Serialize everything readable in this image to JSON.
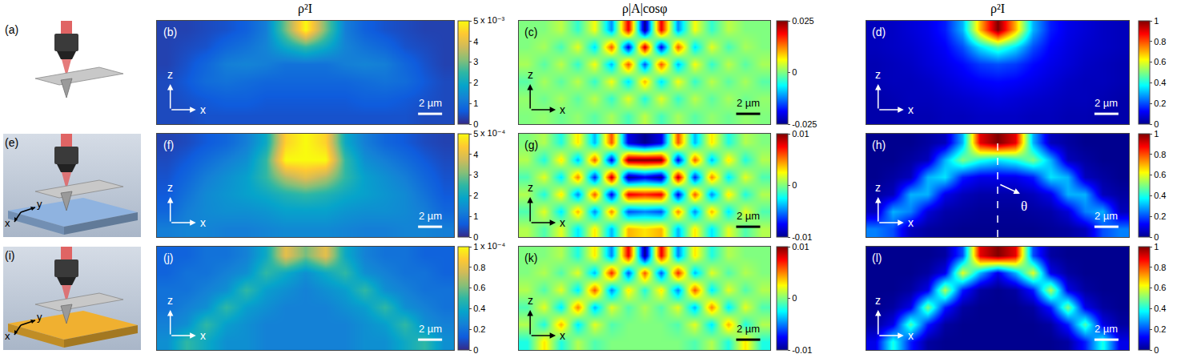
{
  "column_titles": [
    "ρ²I",
    "ρ|A|cosφ",
    "ρ²I"
  ],
  "illustrations": [
    {
      "label": "(a)"
    },
    {
      "label": "(e)",
      "color": "#8fb3e0",
      "axis_labels": [
        "y",
        "x"
      ]
    },
    {
      "label": "(i)",
      "color": "#f0b030",
      "axis_labels": [
        "y",
        "x"
      ]
    }
  ],
  "chart_data": [
    {
      "type": "heatmap",
      "label": "(b)",
      "axis_labels": [
        "z",
        "x"
      ],
      "scale_bar": "2 µm",
      "tick_labels": false,
      "color": "parula",
      "color_range": [
        0,
        5
      ],
      "color_ticks": [
        0,
        1,
        2,
        3,
        4,
        5
      ],
      "color_exponent": "x 10⁻³",
      "cells": [
        [
          0.3,
          0.3,
          0.4,
          0.5,
          0.7,
          1.2,
          3,
          5,
          3,
          1.2,
          0.7,
          0.5,
          0.4,
          0.3,
          0.3
        ],
        [
          0.3,
          0.4,
          0.5,
          0.8,
          1.0,
          1.3,
          2.0,
          2.5,
          2.0,
          1.3,
          1.0,
          0.8,
          0.5,
          0.4,
          0.3
        ],
        [
          0.3,
          0.5,
          0.8,
          1.2,
          1.3,
          1.2,
          1.0,
          1.0,
          1.0,
          1.2,
          1.3,
          1.2,
          0.8,
          0.5,
          0.3
        ],
        [
          0.4,
          0.6,
          0.9,
          1.0,
          0.9,
          0.8,
          0.8,
          0.8,
          0.8,
          0.8,
          0.9,
          1.0,
          0.9,
          0.6,
          0.4
        ],
        [
          0.4,
          0.5,
          0.6,
          0.7,
          0.7,
          0.6,
          0.6,
          0.6,
          0.6,
          0.6,
          0.7,
          0.7,
          0.6,
          0.5,
          0.4
        ],
        [
          0.4,
          0.4,
          0.5,
          0.5,
          0.5,
          0.5,
          0.5,
          0.5,
          0.5,
          0.5,
          0.5,
          0.5,
          0.5,
          0.4,
          0.4
        ]
      ]
    },
    {
      "type": "heatmap",
      "label": "(c)",
      "axis_labels": [
        "z",
        "x"
      ],
      "scale_bar": "2 µm",
      "tick_labels": false,
      "color": "jet",
      "color_range": [
        -0.025,
        0.025
      ],
      "color_ticks": [
        -0.025,
        0,
        0.025
      ],
      "cells": [
        [
          0,
          0,
          0.003,
          -0.004,
          0.006,
          -0.012,
          0.02,
          -0.025,
          0.02,
          -0.012,
          0.006,
          -0.004,
          0.003,
          0,
          0
        ],
        [
          0,
          0.002,
          -0.003,
          0.005,
          -0.008,
          0.015,
          -0.02,
          0.022,
          -0.02,
          0.015,
          -0.008,
          0.005,
          -0.003,
          0.002,
          0
        ],
        [
          0.002,
          -0.002,
          0.003,
          -0.004,
          0.006,
          -0.01,
          0.015,
          -0.015,
          0.015,
          -0.01,
          0.006,
          -0.004,
          0.003,
          -0.002,
          0.002
        ],
        [
          -0.002,
          0.002,
          -0.002,
          0.003,
          -0.004,
          0.006,
          -0.008,
          0.01,
          -0.008,
          0.006,
          -0.004,
          0.003,
          -0.002,
          0.002,
          -0.002
        ],
        [
          0.001,
          -0.001,
          0.002,
          -0.002,
          0.003,
          -0.004,
          0.005,
          -0.005,
          0.005,
          -0.004,
          0.003,
          -0.002,
          0.002,
          -0.001,
          0.001
        ],
        [
          0,
          0.001,
          -0.001,
          0.001,
          -0.002,
          0.002,
          -0.003,
          0.003,
          -0.003,
          0.002,
          -0.002,
          0.001,
          -0.001,
          0.001,
          0
        ]
      ]
    },
    {
      "type": "heatmap",
      "label": "(d)",
      "axis_labels": [
        "z",
        "x"
      ],
      "scale_bar": "2 µm",
      "tick_labels": false,
      "color": "jet",
      "color_range": [
        0,
        1
      ],
      "color_ticks": [
        0,
        0.2,
        0.4,
        0.6,
        0.8,
        1
      ],
      "cells": [
        [
          0.05,
          0.06,
          0.08,
          0.1,
          0.15,
          0.3,
          0.7,
          1,
          0.7,
          0.3,
          0.15,
          0.1,
          0.08,
          0.06,
          0.05
        ],
        [
          0.05,
          0.06,
          0.07,
          0.09,
          0.12,
          0.2,
          0.35,
          0.45,
          0.35,
          0.2,
          0.12,
          0.09,
          0.07,
          0.06,
          0.05
        ],
        [
          0.04,
          0.05,
          0.06,
          0.08,
          0.1,
          0.13,
          0.18,
          0.2,
          0.18,
          0.13,
          0.1,
          0.08,
          0.06,
          0.05,
          0.04
        ],
        [
          0.04,
          0.05,
          0.05,
          0.06,
          0.08,
          0.1,
          0.12,
          0.13,
          0.12,
          0.1,
          0.08,
          0.06,
          0.05,
          0.05,
          0.04
        ],
        [
          0.03,
          0.04,
          0.05,
          0.05,
          0.06,
          0.07,
          0.08,
          0.09,
          0.08,
          0.07,
          0.06,
          0.05,
          0.05,
          0.04,
          0.03
        ],
        [
          0.03,
          0.03,
          0.04,
          0.04,
          0.05,
          0.05,
          0.06,
          0.06,
          0.06,
          0.05,
          0.05,
          0.04,
          0.04,
          0.03,
          0.03
        ]
      ]
    },
    {
      "type": "heatmap",
      "label": "(f)",
      "axis_labels": [
        "z",
        "x"
      ],
      "scale_bar": "2 µm",
      "tick_labels": false,
      "color": "parula",
      "color_range": [
        0,
        5
      ],
      "color_ticks": [
        0,
        1,
        2,
        3,
        4,
        5
      ],
      "color_exponent": "x 10⁻⁴",
      "cells": [
        [
          0.3,
          0.4,
          0.6,
          0.8,
          1.2,
          2.0,
          4.5,
          5,
          4.5,
          2.0,
          1.2,
          0.8,
          0.6,
          0.4,
          0.3
        ],
        [
          0.4,
          0.6,
          0.9,
          1.2,
          1.5,
          2.5,
          5,
          5,
          5,
          2.5,
          1.5,
          1.2,
          0.9,
          0.6,
          0.4
        ],
        [
          0.5,
          0.8,
          1.2,
          1.5,
          1.8,
          2.5,
          3.5,
          4,
          3.5,
          2.5,
          1.8,
          1.5,
          1.2,
          0.8,
          0.5
        ],
        [
          0.6,
          1.0,
          1.4,
          1.6,
          1.8,
          2.0,
          2.3,
          2.5,
          2.3,
          2.0,
          1.8,
          1.6,
          1.4,
          1.0,
          0.6
        ],
        [
          0.8,
          1.2,
          1.4,
          1.5,
          1.5,
          1.6,
          1.8,
          1.8,
          1.8,
          1.6,
          1.5,
          1.5,
          1.4,
          1.2,
          0.8
        ],
        [
          1.2,
          1.3,
          1.3,
          1.2,
          1.2,
          1.3,
          1.4,
          1.4,
          1.4,
          1.3,
          1.2,
          1.2,
          1.3,
          1.3,
          1.2
        ]
      ]
    },
    {
      "type": "heatmap",
      "label": "(g)",
      "axis_labels": [
        "z",
        "x"
      ],
      "scale_bar": "2 µm",
      "tick_labels": false,
      "color": "jet",
      "color_range": [
        -0.01,
        0.01
      ],
      "color_ticks": [
        -0.01,
        0,
        0.01
      ],
      "cells": [
        [
          0,
          0.001,
          -0.002,
          0.003,
          -0.004,
          0.006,
          -0.008,
          -0.01,
          -0.008,
          0.006,
          -0.004,
          0.003,
          -0.002,
          0.001,
          0
        ],
        [
          0.001,
          -0.002,
          0.003,
          -0.004,
          0.006,
          -0.008,
          0.01,
          0.01,
          0.01,
          -0.008,
          0.006,
          -0.004,
          0.003,
          -0.002,
          0.001
        ],
        [
          -0.001,
          0.002,
          -0.003,
          0.005,
          -0.007,
          0.009,
          -0.01,
          -0.008,
          -0.01,
          0.009,
          -0.007,
          0.005,
          -0.003,
          0.002,
          -0.001
        ],
        [
          0.001,
          -0.002,
          0.003,
          -0.005,
          0.006,
          -0.008,
          0.008,
          0.007,
          0.008,
          -0.008,
          0.006,
          -0.005,
          0.003,
          -0.002,
          0.001
        ],
        [
          -0.001,
          0.002,
          -0.003,
          0.004,
          -0.005,
          0.005,
          -0.006,
          -0.005,
          -0.006,
          0.005,
          -0.005,
          0.004,
          -0.003,
          0.002,
          -0.001
        ],
        [
          0.001,
          -0.001,
          0.002,
          -0.003,
          0.003,
          -0.004,
          0.004,
          0.003,
          0.004,
          -0.004,
          0.003,
          -0.003,
          0.002,
          -0.001,
          0.001
        ]
      ]
    },
    {
      "type": "heatmap",
      "label": "(h)",
      "axis_labels": [
        "z",
        "x"
      ],
      "scale_bar": "2 µm",
      "tick_labels": false,
      "color": "jet",
      "color_range": [
        0,
        1
      ],
      "color_ticks": [
        0,
        0.2,
        0.4,
        0.6,
        0.8,
        1
      ],
      "annotations": [
        "θ"
      ],
      "cells": [
        [
          0,
          0,
          0,
          0.02,
          0.05,
          0.3,
          0.9,
          1,
          0.9,
          0.3,
          0.05,
          0.02,
          0,
          0,
          0
        ],
        [
          0,
          0,
          0.02,
          0.05,
          0.3,
          0.5,
          0.4,
          0.35,
          0.4,
          0.5,
          0.3,
          0.05,
          0.02,
          0,
          0
        ],
        [
          0,
          0.02,
          0.05,
          0.3,
          0.35,
          0.15,
          0.1,
          0.1,
          0.1,
          0.15,
          0.35,
          0.3,
          0.05,
          0.02,
          0
        ],
        [
          0.02,
          0.05,
          0.3,
          0.3,
          0.1,
          0.05,
          0.03,
          0.03,
          0.03,
          0.05,
          0.1,
          0.3,
          0.3,
          0.05,
          0.02
        ],
        [
          0.05,
          0.3,
          0.25,
          0.08,
          0.03,
          0.02,
          0.01,
          0.01,
          0.01,
          0.02,
          0.03,
          0.08,
          0.25,
          0.3,
          0.05
        ],
        [
          0.25,
          0.2,
          0.05,
          0.02,
          0.01,
          0,
          0,
          0,
          0,
          0,
          0.01,
          0.02,
          0.05,
          0.2,
          0.25
        ]
      ]
    },
    {
      "type": "heatmap",
      "label": "(j)",
      "axis_labels": [
        "z",
        "x"
      ],
      "scale_bar": "2 µm",
      "tick_labels": false,
      "color": "parula",
      "color_range": [
        0,
        1
      ],
      "color_ticks": [
        0,
        0.2,
        0.4,
        0.6,
        0.8,
        1
      ],
      "color_exponent": "x 10⁻⁴",
      "cells": [
        [
          0.15,
          0.15,
          0.2,
          0.2,
          0.25,
          0.4,
          0.8,
          0.6,
          0.8,
          0.4,
          0.25,
          0.2,
          0.2,
          0.15,
          0.15
        ],
        [
          0.15,
          0.2,
          0.2,
          0.25,
          0.3,
          0.5,
          0.4,
          0.3,
          0.4,
          0.5,
          0.3,
          0.25,
          0.2,
          0.2,
          0.15
        ],
        [
          0.2,
          0.2,
          0.25,
          0.3,
          0.5,
          0.35,
          0.3,
          0.25,
          0.3,
          0.35,
          0.5,
          0.3,
          0.25,
          0.2,
          0.2
        ],
        [
          0.2,
          0.25,
          0.3,
          0.5,
          0.35,
          0.3,
          0.25,
          0.25,
          0.25,
          0.3,
          0.35,
          0.5,
          0.3,
          0.25,
          0.2
        ],
        [
          0.25,
          0.3,
          0.5,
          0.35,
          0.3,
          0.25,
          0.25,
          0.25,
          0.25,
          0.25,
          0.3,
          0.35,
          0.5,
          0.3,
          0.25
        ],
        [
          0.3,
          0.5,
          0.4,
          0.3,
          0.3,
          0.25,
          0.25,
          0.25,
          0.25,
          0.25,
          0.3,
          0.3,
          0.4,
          0.5,
          0.3
        ]
      ]
    },
    {
      "type": "heatmap",
      "label": "(k)",
      "axis_labels": [
        "z",
        "x"
      ],
      "scale_bar": "2 µm",
      "tick_labels": false,
      "color": "jet",
      "color_range": [
        -0.01,
        0.01
      ],
      "color_ticks": [
        -0.01,
        0,
        0.01
      ],
      "cells": [
        [
          0,
          0,
          0.001,
          -0.002,
          0.003,
          -0.005,
          0.008,
          -0.01,
          0.008,
          -0.005,
          0.003,
          -0.002,
          0.001,
          0,
          0
        ],
        [
          0,
          0.001,
          -0.001,
          0.002,
          -0.004,
          0.007,
          -0.006,
          0.006,
          -0.006,
          0.007,
          -0.004,
          0.002,
          -0.001,
          0.001,
          0
        ],
        [
          0.001,
          -0.001,
          0.002,
          -0.003,
          0.006,
          -0.005,
          0.003,
          -0.002,
          0.003,
          -0.005,
          0.006,
          -0.003,
          0.002,
          -0.001,
          0.001
        ],
        [
          -0.001,
          0.002,
          -0.003,
          0.005,
          -0.004,
          0.002,
          -0.001,
          0.001,
          -0.001,
          0.002,
          -0.004,
          0.005,
          -0.003,
          0.002,
          -0.001
        ],
        [
          0.001,
          -0.002,
          0.004,
          -0.003,
          0.002,
          -0.001,
          0,
          0,
          0,
          -0.001,
          0.002,
          -0.003,
          0.004,
          -0.002,
          0.001
        ],
        [
          -0.002,
          0.003,
          -0.002,
          0.001,
          -0.001,
          0,
          0,
          0,
          0,
          0,
          -0.001,
          0.001,
          -0.002,
          0.003,
          -0.002
        ]
      ]
    },
    {
      "type": "heatmap",
      "label": "(l)",
      "axis_labels": [
        "z",
        "x"
      ],
      "scale_bar": "2 µm",
      "tick_labels": false,
      "color": "jet",
      "color_range": [
        0,
        1
      ],
      "color_ticks": [
        0,
        0.2,
        0.4,
        0.6,
        0.8,
        1
      ],
      "cells": [
        [
          0,
          0,
          0,
          0,
          0.02,
          0.2,
          0.9,
          1,
          0.9,
          0.2,
          0.02,
          0,
          0,
          0,
          0
        ],
        [
          0,
          0,
          0,
          0.02,
          0.1,
          0.6,
          0.3,
          0.1,
          0.3,
          0.6,
          0.1,
          0.02,
          0,
          0,
          0
        ],
        [
          0,
          0,
          0.02,
          0.1,
          0.55,
          0.15,
          0.02,
          0,
          0.02,
          0.15,
          0.55,
          0.1,
          0.02,
          0,
          0
        ],
        [
          0,
          0.02,
          0.1,
          0.5,
          0.15,
          0.02,
          0,
          0,
          0,
          0.02,
          0.15,
          0.5,
          0.1,
          0.02,
          0
        ],
        [
          0.02,
          0.1,
          0.45,
          0.15,
          0.02,
          0,
          0,
          0,
          0,
          0,
          0.02,
          0.15,
          0.45,
          0.1,
          0.02
        ],
        [
          0.1,
          0.4,
          0.15,
          0.02,
          0,
          0,
          0,
          0,
          0,
          0,
          0,
          0.02,
          0.15,
          0.4,
          0.1
        ]
      ]
    }
  ]
}
